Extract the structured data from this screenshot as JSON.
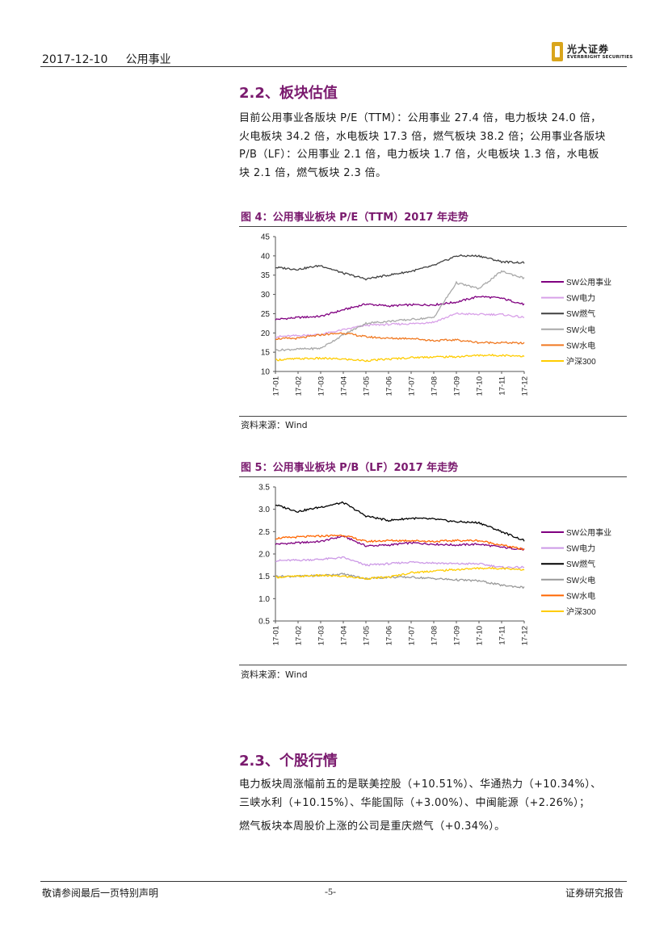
{
  "header": {
    "date": "2017-12-10",
    "category": "公用事业",
    "logo_cn": "光大证券",
    "logo_en": "EVERBRIGHT SECURITIES"
  },
  "section_22": {
    "title": "2.2、板块估值",
    "lines": [
      "目前公用事业各版块 P/E（TTM）：公用事业 27.4 倍，电力板块 24.0 倍，",
      "火电板块 34.2 倍，水电板块 17.3 倍，燃气板块 38.2 倍；公用事业各版块",
      "P/B（LF）：公用事业 2.1 倍，电力板块 1.7 倍，火电板块 1.3 倍，水电板",
      "块 2.1 倍，燃气板块 2.3 倍。"
    ]
  },
  "figure4": {
    "title": "图 4：公用事业板块 P/E（TTM）2017 年走势",
    "source": "资料来源：Wind"
  },
  "figure5": {
    "title": "图 5：公用事业板块 P/B（LF）2017 年走势",
    "source": "资料来源：Wind"
  },
  "section_23": {
    "title": "2.3、个股行情",
    "lines": [
      "电力板块周涨幅前五的是联美控股（+10.51%）、华通热力（+10.34%）、",
      "三峡水利（+10.15%）、华能国际（+3.00%）、中闽能源（+2.26%）；"
    ],
    "line2": "燃气板块本周股价上涨的公司是重庆燃气（+0.34%）。"
  },
  "footer": {
    "left": "敬请参阅最后一页特别声明",
    "center": "-5-",
    "right": "证券研究报告"
  },
  "chart_data": [
    {
      "type": "line",
      "x": [
        "17-01",
        "17-02",
        "17-03",
        "17-04",
        "17-05",
        "17-06",
        "17-07",
        "17-08",
        "17-09",
        "17-10",
        "17-11",
        "17-12"
      ],
      "ylim": [
        10,
        45
      ],
      "yticks": [
        10,
        15,
        20,
        25,
        30,
        35,
        40,
        45
      ],
      "legend": "right",
      "series": [
        {
          "name": "SW公用事业",
          "color": "#800080",
          "values": [
            23.5,
            24.0,
            24.3,
            26.0,
            27.5,
            27.0,
            27.3,
            27.3,
            28.0,
            29.5,
            29.0,
            27.4
          ]
        },
        {
          "name": "SW电力",
          "color": "#d8a0e8",
          "values": [
            19.0,
            19.3,
            19.6,
            20.8,
            22.0,
            22.2,
            22.4,
            22.8,
            25.0,
            24.8,
            24.8,
            24.0
          ]
        },
        {
          "name": "SW燃气",
          "color": "#404040",
          "values": [
            37.0,
            36.5,
            37.5,
            35.5,
            34.0,
            35.0,
            36.0,
            37.5,
            40.0,
            40.0,
            38.5,
            38.2
          ]
        },
        {
          "name": "SW火电",
          "color": "#a8a8a8",
          "values": [
            15.5,
            15.8,
            16.0,
            19.5,
            22.5,
            23.0,
            23.5,
            24.0,
            33.0,
            31.5,
            36.0,
            34.2
          ]
        },
        {
          "name": "SW水电",
          "color": "#f07820",
          "values": [
            18.5,
            18.6,
            19.5,
            20.0,
            19.0,
            18.6,
            18.6,
            18.0,
            18.2,
            17.5,
            17.5,
            17.3
          ]
        },
        {
          "name": "沪深300",
          "color": "#ffcc00",
          "values": [
            13.0,
            13.3,
            13.4,
            13.2,
            12.8,
            13.2,
            13.6,
            13.8,
            13.8,
            14.2,
            14.2,
            14.0
          ]
        }
      ]
    },
    {
      "type": "line",
      "x": [
        "17-01",
        "17-02",
        "17-03",
        "17-04",
        "17-05",
        "17-06",
        "17-07",
        "17-08",
        "17-09",
        "17-10",
        "17-11",
        "17-12"
      ],
      "ylim": [
        0.5,
        3.5
      ],
      "yticks": [
        0.5,
        1.0,
        1.5,
        2.0,
        2.5,
        3.0,
        3.5
      ],
      "legend": "right",
      "series": [
        {
          "name": "SW公用事业",
          "color": "#800080",
          "values": [
            2.22,
            2.25,
            2.28,
            2.4,
            2.18,
            2.2,
            2.25,
            2.22,
            2.2,
            2.22,
            2.15,
            2.1
          ]
        },
        {
          "name": "SW电力",
          "color": "#cc99e6",
          "values": [
            1.85,
            1.86,
            1.88,
            1.92,
            1.75,
            1.78,
            1.82,
            1.8,
            1.78,
            1.78,
            1.7,
            1.7
          ]
        },
        {
          "name": "SW燃气",
          "color": "#000000",
          "values": [
            3.1,
            2.95,
            3.05,
            3.15,
            2.85,
            2.75,
            2.8,
            2.78,
            2.72,
            2.7,
            2.5,
            2.3
          ]
        },
        {
          "name": "SW火电",
          "color": "#999999",
          "values": [
            1.5,
            1.5,
            1.52,
            1.55,
            1.45,
            1.48,
            1.48,
            1.45,
            1.42,
            1.4,
            1.3,
            1.25
          ]
        },
        {
          "name": "SW水电",
          "color": "#ff6600",
          "values": [
            2.35,
            2.38,
            2.4,
            2.42,
            2.28,
            2.3,
            2.3,
            2.28,
            2.3,
            2.3,
            2.2,
            2.1
          ]
        },
        {
          "name": "沪深300",
          "color": "#ffcc00",
          "values": [
            1.48,
            1.5,
            1.52,
            1.5,
            1.45,
            1.48,
            1.58,
            1.62,
            1.65,
            1.68,
            1.68,
            1.65
          ]
        }
      ]
    }
  ]
}
